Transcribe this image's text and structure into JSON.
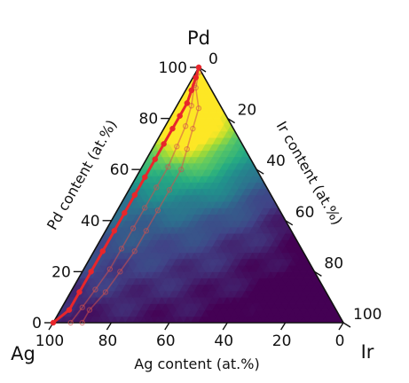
{
  "chart_data": {
    "type": "ternary",
    "vertices": {
      "top": "Pd",
      "left": "Ag",
      "right": "Ir"
    },
    "axes": {
      "left": {
        "label": "Pd content (at.%)",
        "ticks": [
          0,
          20,
          40,
          60,
          80,
          100
        ]
      },
      "right": {
        "label": "Ir content (at.%)",
        "ticks": [
          0,
          20,
          40,
          60,
          80,
          100
        ]
      },
      "bottom": {
        "label": "Ag content (at.%)",
        "ticks": [
          100,
          80,
          60,
          40,
          20,
          0
        ]
      }
    },
    "colormap": "viridis",
    "heatmap": {
      "description_hint": "high values near Pd-rich corner, decreasing toward Ir-rich / bottom-right",
      "peak": {
        "Pd": 82,
        "Ag": 12,
        "Ir": 6
      }
    },
    "series": [
      {
        "style": "solid-with-dots",
        "color": "#e8262b",
        "points": [
          {
            "Pd": 100,
            "Ag": 0,
            "Ir": 0
          },
          {
            "Pd": 96,
            "Ag": 3,
            "Ir": 1
          },
          {
            "Pd": 91,
            "Ag": 7,
            "Ir": 2
          },
          {
            "Pd": 86,
            "Ag": 11,
            "Ir": 3
          },
          {
            "Pd": 81,
            "Ag": 16,
            "Ir": 3
          },
          {
            "Pd": 76,
            "Ag": 21,
            "Ir": 3
          },
          {
            "Pd": 70,
            "Ag": 27,
            "Ir": 3
          },
          {
            "Pd": 64,
            "Ag": 33,
            "Ir": 3
          },
          {
            "Pd": 57,
            "Ag": 40,
            "Ir": 3
          },
          {
            "Pd": 50,
            "Ag": 47,
            "Ir": 3
          },
          {
            "Pd": 43,
            "Ag": 54,
            "Ir": 3
          },
          {
            "Pd": 36,
            "Ag": 61,
            "Ir": 3
          },
          {
            "Pd": 28,
            "Ag": 69,
            "Ir": 3
          },
          {
            "Pd": 20,
            "Ag": 77,
            "Ir": 3
          },
          {
            "Pd": 12,
            "Ag": 85,
            "Ir": 3
          },
          {
            "Pd": 5,
            "Ag": 92,
            "Ir": 3
          },
          {
            "Pd": 0,
            "Ag": 100,
            "Ir": 0
          }
        ]
      },
      {
        "style": "faint-with-dots",
        "color": "#d2504c",
        "points": [
          {
            "Pd": 98,
            "Ag": 1,
            "Ir": 1
          },
          {
            "Pd": 92,
            "Ag": 5,
            "Ir": 3
          },
          {
            "Pd": 84,
            "Ag": 8,
            "Ir": 8
          },
          {
            "Pd": 76,
            "Ag": 14,
            "Ir": 10
          },
          {
            "Pd": 68,
            "Ag": 20,
            "Ir": 12
          },
          {
            "Pd": 60,
            "Ag": 26,
            "Ir": 14
          },
          {
            "Pd": 52,
            "Ag": 34,
            "Ir": 14
          },
          {
            "Pd": 44,
            "Ag": 42,
            "Ir": 14
          },
          {
            "Pd": 36,
            "Ag": 50,
            "Ir": 14
          },
          {
            "Pd": 28,
            "Ag": 58,
            "Ir": 14
          },
          {
            "Pd": 20,
            "Ag": 67,
            "Ir": 13
          },
          {
            "Pd": 12,
            "Ag": 76,
            "Ir": 12
          },
          {
            "Pd": 5,
            "Ag": 85,
            "Ir": 10
          },
          {
            "Pd": 0,
            "Ag": 90,
            "Ir": 10
          }
        ]
      },
      {
        "style": "faint-with-dots",
        "color": "#d2504c",
        "points": [
          {
            "Pd": 100,
            "Ag": 0,
            "Ir": 0
          },
          {
            "Pd": 93,
            "Ag": 5,
            "Ir": 2
          },
          {
            "Pd": 85,
            "Ag": 10,
            "Ir": 5
          },
          {
            "Pd": 77,
            "Ag": 16,
            "Ir": 7
          },
          {
            "Pd": 69,
            "Ag": 23,
            "Ir": 8
          },
          {
            "Pd": 61,
            "Ag": 30,
            "Ir": 9
          },
          {
            "Pd": 53,
            "Ag": 38,
            "Ir": 9
          },
          {
            "Pd": 45,
            "Ag": 46,
            "Ir": 9
          },
          {
            "Pd": 37,
            "Ag": 54,
            "Ir": 9
          },
          {
            "Pd": 29,
            "Ag": 62,
            "Ir": 9
          },
          {
            "Pd": 21,
            "Ag": 70,
            "Ir": 9
          },
          {
            "Pd": 13,
            "Ag": 79,
            "Ir": 8
          },
          {
            "Pd": 6,
            "Ag": 87,
            "Ir": 7
          },
          {
            "Pd": 0,
            "Ag": 94,
            "Ir": 6
          }
        ]
      }
    ]
  }
}
